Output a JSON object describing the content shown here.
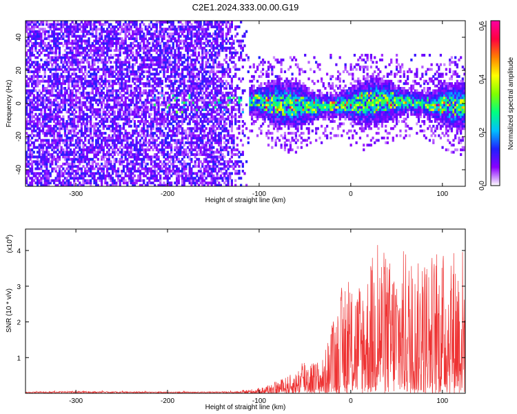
{
  "page": {
    "title": "C2E1.2024.333.00.00.G19"
  },
  "chart_data": [
    {
      "type": "heatmap",
      "xlabel": "Height of straight line (km)",
      "ylabel": "Frequency (Hz)",
      "xlim": [
        -355,
        125
      ],
      "ylim": [
        -50,
        50
      ],
      "xticks": [
        -300,
        -200,
        -100,
        0,
        100
      ],
      "xtick_labels": [
        "-300",
        "-200",
        "-100",
        "0",
        "100"
      ],
      "yticks": [
        -40,
        -20,
        0,
        20,
        40
      ],
      "ytick_labels": [
        "-40",
        "-20",
        "0",
        "20",
        "40"
      ],
      "grid": false,
      "colorbar": {
        "label": "Normalized spectral amplitude",
        "range": [
          0.0,
          0.62
        ],
        "ticks": [
          0.0,
          0.2,
          0.4,
          0.6
        ],
        "tick_labels": [
          "0.0",
          "0.2",
          "0.4",
          "0.6"
        ],
        "colors": [
          "#ffffff",
          "#8a00ff",
          "#2020ff",
          "#00c0ff",
          "#00ff80",
          "#80ff00",
          "#ffff00",
          "#ff8000",
          "#ff0040",
          "#ff00a0"
        ]
      },
      "regions": [
        {
          "x_range": [
            -355,
            -110
          ],
          "y_range": [
            -50,
            50
          ],
          "level": 0.08
        },
        {
          "x_range": [
            -110,
            125
          ],
          "y_range": [
            -15,
            15
          ],
          "level": 0.3
        }
      ]
    },
    {
      "type": "line",
      "xlabel": "Height of straight line (km)",
      "ylabel": "SNR (10 * v/v)",
      "y_multiplier": "(x10",
      "y_multiplier_exp": "4",
      "y_multiplier_close": ")",
      "xlim": [
        -355,
        125
      ],
      "ylim": [
        0,
        4.6
      ],
      "xticks": [
        -300,
        -200,
        -100,
        0,
        100
      ],
      "xtick_labels": [
        "-300",
        "-200",
        "-100",
        "0",
        "100"
      ],
      "yticks": [
        1,
        2,
        3,
        4
      ],
      "ytick_labels": [
        "1",
        "2",
        "3",
        "4"
      ],
      "grid": false,
      "series_color": "#ee3333",
      "envelope": {
        "x": [
          -355,
          -300,
          -200,
          -120,
          -100,
          -80,
          -60,
          -50,
          -40,
          -30,
          -20,
          -10,
          0,
          10,
          20,
          30,
          40,
          50,
          60,
          70,
          80,
          90,
          100,
          110,
          125
        ],
        "y": [
          0.06,
          0.1,
          0.06,
          0.08,
          0.15,
          0.35,
          0.6,
          1.1,
          0.9,
          1.0,
          2.0,
          3.0,
          3.2,
          3.3,
          3.6,
          4.5,
          3.8,
          3.9,
          4.1,
          3.6,
          3.9,
          4.0,
          4.0,
          4.2,
          4.2
        ]
      }
    }
  ]
}
